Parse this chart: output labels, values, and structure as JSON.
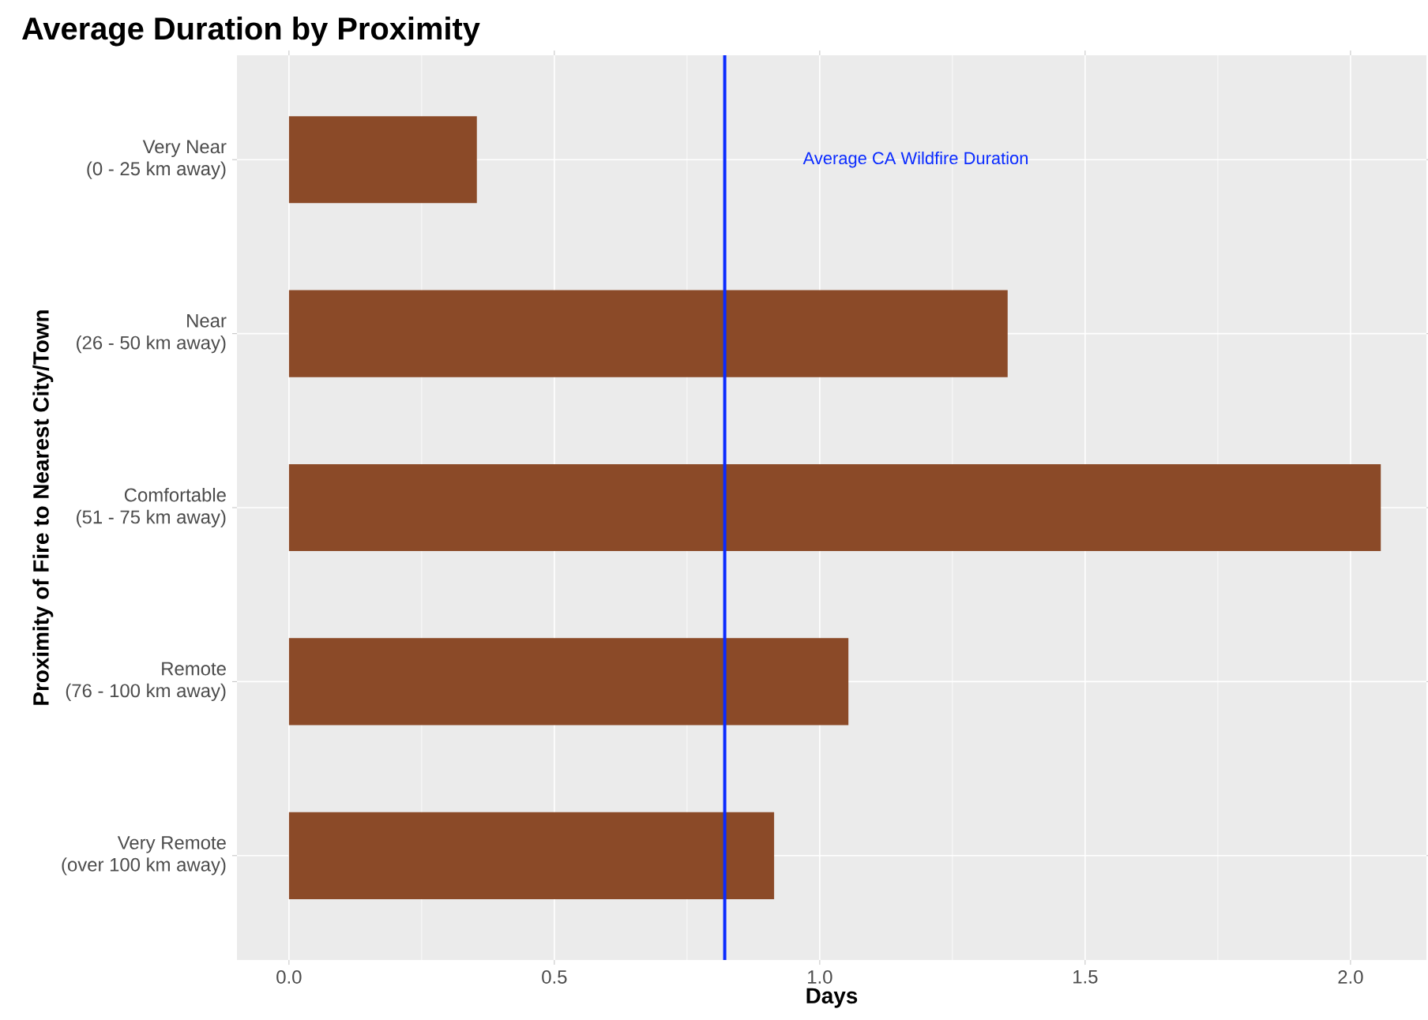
{
  "chart_data": {
    "type": "bar",
    "orientation": "horizontal",
    "title": "Average Duration by Proximity",
    "xlabel": "Days",
    "ylabel": "Proximity of Fire to Nearest City/Town",
    "categories": [
      "Very Near\n(0 - 25 km away)",
      "Near\n(26 - 50 km away)",
      "Comfortable\n(51 - 75 km away)",
      "Remote\n(76 - 100 km away)",
      "Very Remote\n(over 100 km away)"
    ],
    "values": [
      0.354,
      1.354,
      2.057,
      1.054,
      0.914
    ],
    "color": "#8b4a28",
    "xlim": [
      -0.098,
      2.143
    ],
    "xticks": [
      {
        "value": 0,
        "label": "0.0"
      },
      {
        "value": 0.5,
        "label": "0.5"
      },
      {
        "value": 1,
        "label": "1.0"
      },
      {
        "value": 1.5,
        "label": "1.5"
      },
      {
        "value": 2,
        "label": "2.0"
      }
    ],
    "ref_lines": [
      {
        "axis": "x",
        "value": 0.821,
        "label": "Average CA Wildfire Duration",
        "color": "#0a2bff"
      }
    ],
    "grid": true
  }
}
